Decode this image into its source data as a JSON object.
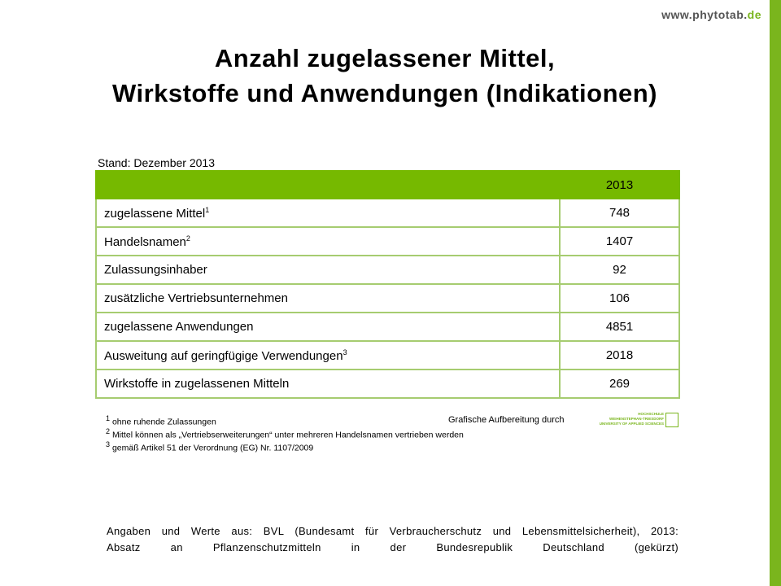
{
  "header": {
    "url_main": "www.phytotab.",
    "url_tld": "de"
  },
  "title": {
    "line1": "Anzahl zugelassener Mittel,",
    "line2": "Wirkstoffe und Anwendungen (Indikationen)"
  },
  "stand": "Stand: Dezember 2013",
  "table": {
    "column_header": "2013",
    "rows": [
      {
        "label": "zugelassene Mittel",
        "note": "1",
        "value": 748
      },
      {
        "label": "Handelsnamen",
        "note": "2",
        "value": 1407
      },
      {
        "label": "Zulassungsinhaber",
        "value": 92
      },
      {
        "label": "zusätzliche Vertriebsunternehmen",
        "value": 106
      },
      {
        "label": "zugelassene Anwendungen",
        "value": 4851
      },
      {
        "label": "Ausweitung auf geringfügige Verwendungen",
        "note": "3",
        "value": 2018
      },
      {
        "label": "Wirkstoffe in zugelassenen Mitteln",
        "value": 269
      }
    ]
  },
  "footnotes": [
    {
      "mark": "1",
      "text": "ohne ruhende Zulassungen"
    },
    {
      "mark": "2",
      "text": "Mittel können als „Vertriebserweiterungen“ unter mehreren Handelsnamen vertrieben werden"
    },
    {
      "mark": "3",
      "text": "gemäß Artikel 51 der Verordnung (EG) Nr. 1107/2009"
    }
  ],
  "credit": {
    "text": "Grafische Aufbereitung durch",
    "logo_line1": "HOCHSCHULE",
    "logo_line2": "WEIHENSTEPHAN-TRIESDORF",
    "logo_line3": "UNIVERSITY OF APPLIED SCIENCES"
  },
  "source": {
    "line1": "Angaben und Werte aus: BVL (Bundesamt für Verbraucherschutz und Lebensmittelsicherheit), 2013:",
    "line2": "Absatz an Pflanzenschutzmitteln in der Bundesrepublik Deutschland (gekürzt)"
  }
}
